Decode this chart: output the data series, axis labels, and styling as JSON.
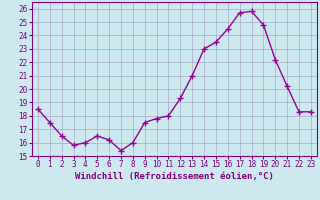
{
  "x": [
    0,
    1,
    2,
    3,
    4,
    5,
    6,
    7,
    8,
    9,
    10,
    11,
    12,
    13,
    14,
    15,
    16,
    17,
    18,
    19,
    20,
    21,
    22,
    23
  ],
  "y": [
    18.5,
    17.5,
    16.5,
    15.8,
    16.0,
    16.5,
    16.2,
    15.4,
    16.0,
    17.5,
    17.8,
    18.0,
    19.3,
    21.0,
    23.0,
    23.5,
    24.5,
    25.7,
    25.8,
    24.8,
    22.2,
    20.2,
    18.3,
    18.3
  ],
  "line_color": "#990099",
  "marker": "+",
  "marker_size": 4,
  "linewidth": 1.0,
  "xlabel": "Windchill (Refroidissement éolien,°C)",
  "xlim": [
    -0.5,
    23.5
  ],
  "ylim": [
    15,
    26.5
  ],
  "yticks": [
    15,
    16,
    17,
    18,
    19,
    20,
    21,
    22,
    23,
    24,
    25,
    26
  ],
  "xticks": [
    0,
    1,
    2,
    3,
    4,
    5,
    6,
    7,
    8,
    9,
    10,
    11,
    12,
    13,
    14,
    15,
    16,
    17,
    18,
    19,
    20,
    21,
    22,
    23
  ],
  "background_color": "#cce9f0",
  "grid_color": "#aaaacc",
  "tick_fontsize": 5.5,
  "xlabel_fontsize": 6.5,
  "label_color": "#800080"
}
